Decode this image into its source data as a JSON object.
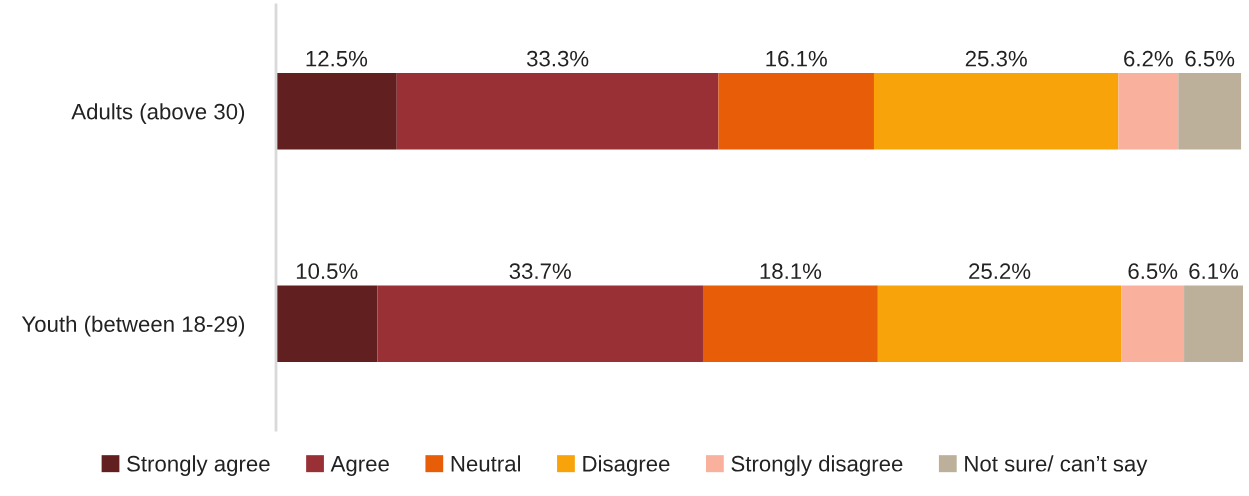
{
  "chart_data": {
    "type": "bar",
    "orientation": "horizontal",
    "stacked": true,
    "categories": [
      "Adults (above 30)",
      "Youth (between 18-29)"
    ],
    "series": [
      {
        "name": "Strongly agree",
        "color": "#611f20",
        "values": [
          12.5,
          10.5
        ],
        "value_labels": [
          "12.5%",
          "10.5%"
        ]
      },
      {
        "name": "Agree",
        "color": "#993035",
        "values": [
          33.3,
          33.7
        ],
        "value_labels": [
          "33.3%",
          "33.7%"
        ]
      },
      {
        "name": "Neutral",
        "color": "#e85d07",
        "values": [
          16.1,
          18.1
        ],
        "value_labels": [
          "16.1%",
          "18.1%"
        ]
      },
      {
        "name": "Disagree",
        "color": "#f9a30a",
        "values": [
          25.3,
          25.2
        ],
        "value_labels": [
          "25.3%",
          "25.2%"
        ]
      },
      {
        "name": "Strongly disagree",
        "color": "#f9b09c",
        "values": [
          6.2,
          6.5
        ],
        "value_labels": [
          "6.2%",
          "6.5%"
        ]
      },
      {
        "name": "Not sure/ can’t say",
        "color": "#bcb09b",
        "values": [
          6.5,
          6.1
        ],
        "value_labels": [
          "6.5%",
          "6.1%"
        ]
      }
    ],
    "tick_labels": "y",
    "grid": false,
    "legend": "bottom"
  }
}
